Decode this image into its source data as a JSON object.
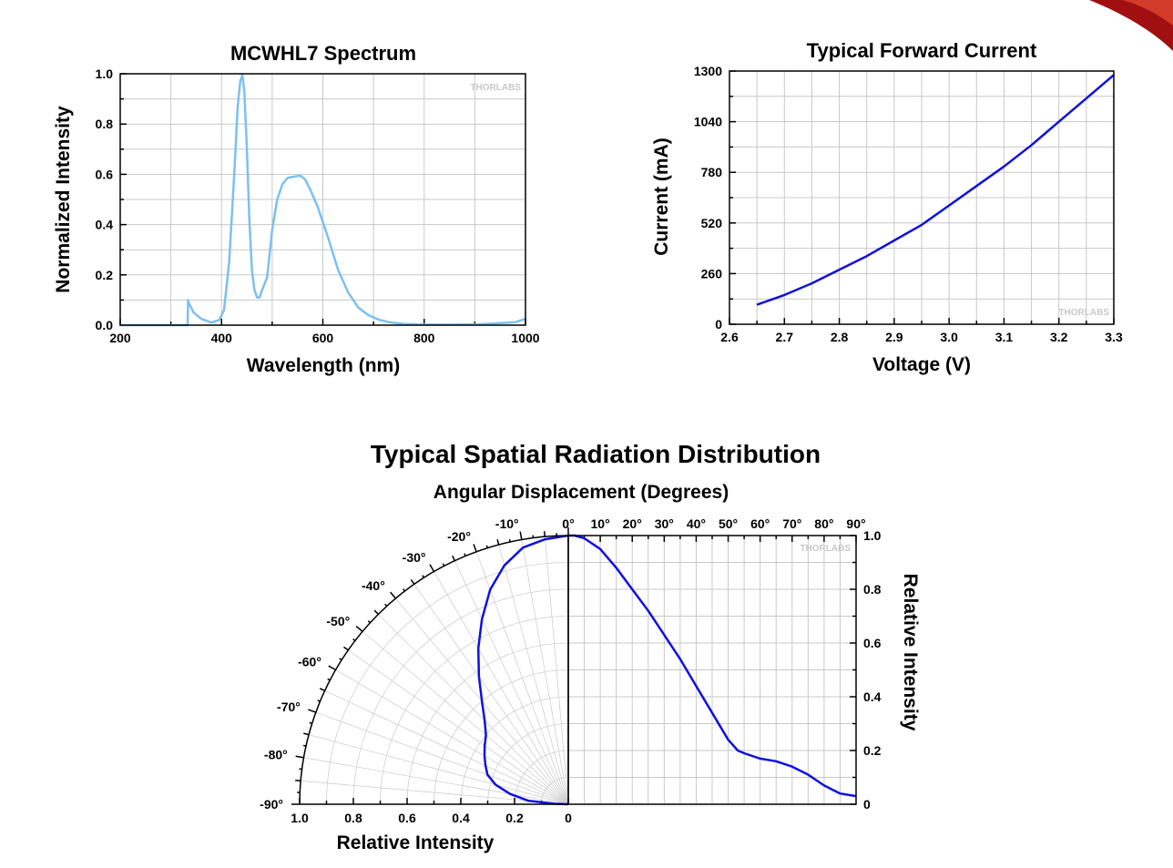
{
  "corner_decoration": "red-swoosh",
  "watermark": "THORLABS",
  "figure_title": "Typical Spatial Radiation Distribution",
  "chart_data": [
    {
      "type": "line",
      "title": "MCWHL7 Spectrum",
      "xlabel": "Wavelength (nm)",
      "ylabel": "Normalized Intensity",
      "xlim": [
        200,
        1000
      ],
      "ylim": [
        0,
        1.0
      ],
      "xticks": [
        "200",
        "400",
        "600",
        "800",
        "1000"
      ],
      "yticks": [
        "0.0",
        "0.2",
        "0.4",
        "0.6",
        "0.8",
        "1.0"
      ],
      "grid": true,
      "color": "#7dc0f0",
      "x": [
        200,
        333,
        334,
        336,
        345,
        360,
        380,
        395,
        405,
        415,
        425,
        432,
        437,
        441,
        445,
        450,
        455,
        460,
        465,
        470,
        475,
        480,
        490,
        500,
        510,
        520,
        530,
        540,
        555,
        565,
        575,
        590,
        610,
        630,
        650,
        670,
        690,
        710,
        730,
        760,
        800,
        850,
        900,
        950,
        980,
        1000
      ],
      "y": [
        0.0,
        0.0,
        0.1,
        0.085,
        0.05,
        0.025,
        0.01,
        0.02,
        0.06,
        0.25,
        0.6,
        0.87,
        0.97,
        0.995,
        0.93,
        0.7,
        0.42,
        0.22,
        0.14,
        0.11,
        0.11,
        0.14,
        0.19,
        0.38,
        0.5,
        0.56,
        0.585,
        0.59,
        0.595,
        0.58,
        0.54,
        0.47,
        0.35,
        0.22,
        0.13,
        0.07,
        0.04,
        0.022,
        0.012,
        0.005,
        0.002,
        0.002,
        0.003,
        0.008,
        0.012,
        0.025
      ]
    },
    {
      "type": "line",
      "title": "Typical Forward Current",
      "xlabel": "Voltage (V)",
      "ylabel": "Current (mA)",
      "xlim": [
        2.6,
        3.3
      ],
      "ylim": [
        0,
        1300
      ],
      "xticks": [
        "2.6",
        "2.7",
        "2.8",
        "2.9",
        "3.0",
        "3.1",
        "3.2",
        "3.3"
      ],
      "yticks": [
        "0",
        "260",
        "520",
        "780",
        "1040",
        "1300"
      ],
      "grid": true,
      "color": "#1010e0",
      "x": [
        2.65,
        2.7,
        2.75,
        2.8,
        2.85,
        2.9,
        2.95,
        3.0,
        3.05,
        3.1,
        3.15,
        3.2,
        3.25,
        3.3
      ],
      "y": [
        100,
        150,
        210,
        280,
        350,
        430,
        510,
        610,
        710,
        810,
        920,
        1040,
        1160,
        1280
      ]
    },
    {
      "type": "line",
      "title": "Angular Displacement (Degrees)",
      "xlabel": "",
      "ylabel": "Relative Intensity",
      "xlim": [
        0,
        90
      ],
      "ylim": [
        0,
        1.0
      ],
      "xticks": [
        "0°",
        "10°",
        "20°",
        "30°",
        "40°",
        "50°",
        "60°",
        "70°",
        "80°",
        "90°"
      ],
      "yticks": [
        "0",
        "0.2",
        "0.4",
        "0.6",
        "0.8",
        "1.0"
      ],
      "grid": true,
      "color": "#1010e0",
      "x": [
        0,
        2,
        5,
        10,
        15,
        20,
        25,
        30,
        35,
        40,
        45,
        50,
        53,
        55,
        60,
        65,
        70,
        75,
        80,
        85,
        90
      ],
      "y": [
        1.0,
        1.0,
        0.99,
        0.95,
        0.88,
        0.8,
        0.72,
        0.63,
        0.54,
        0.44,
        0.34,
        0.24,
        0.2,
        0.19,
        0.17,
        0.16,
        0.14,
        0.11,
        0.07,
        0.04,
        0.03
      ]
    },
    {
      "type": "polar",
      "xlabel": "Relative Intensity",
      "angle_ticks": [
        "-10°",
        "-20°",
        "-30°",
        "-40°",
        "-50°",
        "-60°",
        "-70°",
        "-80°",
        "-90°"
      ],
      "radius_ticks": [
        "1.0",
        "0.8",
        "0.6",
        "0.4",
        "0.2",
        "0"
      ],
      "grid": true,
      "color": "#1010e0",
      "angle": [
        0,
        -5,
        -10,
        -15,
        -20,
        -25,
        -30,
        -35,
        -40,
        -45,
        -50,
        -55,
        -60,
        -65,
        -70,
        -75,
        -80,
        -85,
        -88,
        -90
      ],
      "r": [
        1.0,
        0.99,
        0.97,
        0.92,
        0.85,
        0.76,
        0.67,
        0.58,
        0.5,
        0.44,
        0.4,
        0.38,
        0.36,
        0.34,
        0.32,
        0.28,
        0.22,
        0.15,
        0.05,
        0.0
      ]
    }
  ]
}
